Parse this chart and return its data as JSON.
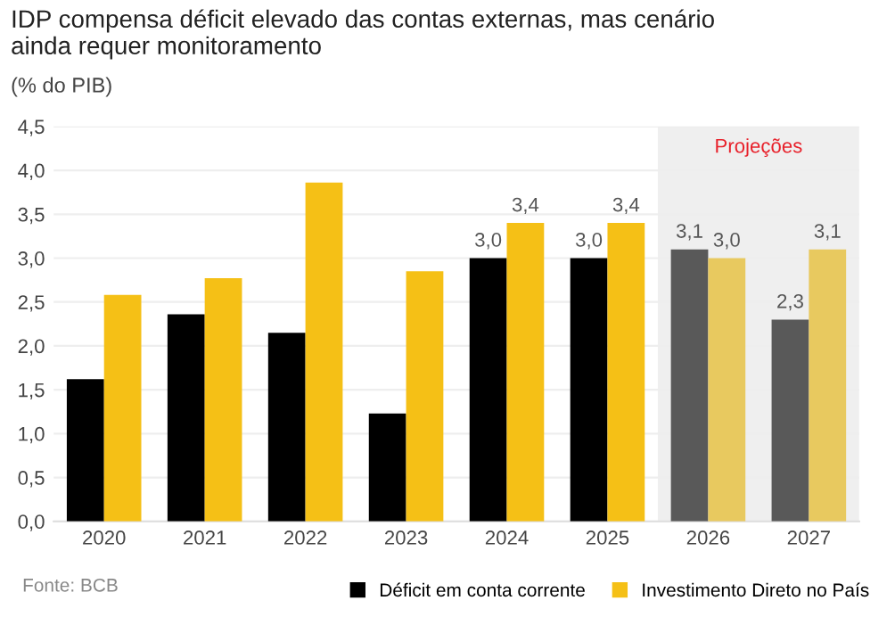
{
  "chart_data": {
    "type": "bar",
    "title": "IDP compensa déficit elevado das contas externas, mas cenário\nainda requer monitoramento",
    "subtitle": "(% do PIB)",
    "categories": [
      "2020",
      "2021",
      "2022",
      "2023",
      "2024",
      "2025",
      "2026",
      "2027"
    ],
    "series": [
      {
        "name": "Déficit em conta corrente",
        "color": "#000000",
        "colors": [
          "#000000",
          "#000000",
          "#000000",
          "#000000",
          "#000000",
          "#000000",
          "#595959",
          "#595959"
        ],
        "values": [
          1.62,
          2.36,
          2.15,
          1.23,
          3.0,
          3.0,
          3.1,
          2.3
        ],
        "value_labels": [
          null,
          null,
          null,
          null,
          "3,0",
          "3,0",
          "3,1",
          "2,3"
        ]
      },
      {
        "name": "Investimento Direto no País",
        "color": "#f5c016",
        "colors": [
          "#f5c016",
          "#f5c016",
          "#f5c016",
          "#f5c016",
          "#f5c016",
          "#f5c016",
          "#e8c95f",
          "#e8c95f"
        ],
        "values": [
          2.58,
          2.77,
          3.86,
          2.85,
          3.4,
          3.4,
          3.0,
          3.1
        ],
        "value_labels": [
          null,
          null,
          null,
          null,
          "3,4",
          "3,4",
          "3,0",
          "3,1"
        ]
      }
    ],
    "ylim": [
      0,
      4.5
    ],
    "yticks": [
      {
        "value": 0,
        "label": "0,0"
      },
      {
        "value": 0.5,
        "label": "0,5"
      },
      {
        "value": 1,
        "label": "1,0"
      },
      {
        "value": 1.5,
        "label": "1,5"
      },
      {
        "value": 2,
        "label": "2,0"
      },
      {
        "value": 2.5,
        "label": "2,5"
      },
      {
        "value": 3,
        "label": "3,0"
      },
      {
        "value": 3.5,
        "label": "3,5"
      },
      {
        "value": 4,
        "label": "4,0"
      },
      {
        "value": 4.5,
        "label": "4,5"
      }
    ],
    "bands": [
      {
        "axis": "x",
        "from": "2026",
        "to": "2027",
        "label": "Projeções",
        "color": "#efefef"
      }
    ],
    "annotations": [
      "Fonte: BCB"
    ],
    "grid": "y",
    "legend": "bottom right"
  }
}
